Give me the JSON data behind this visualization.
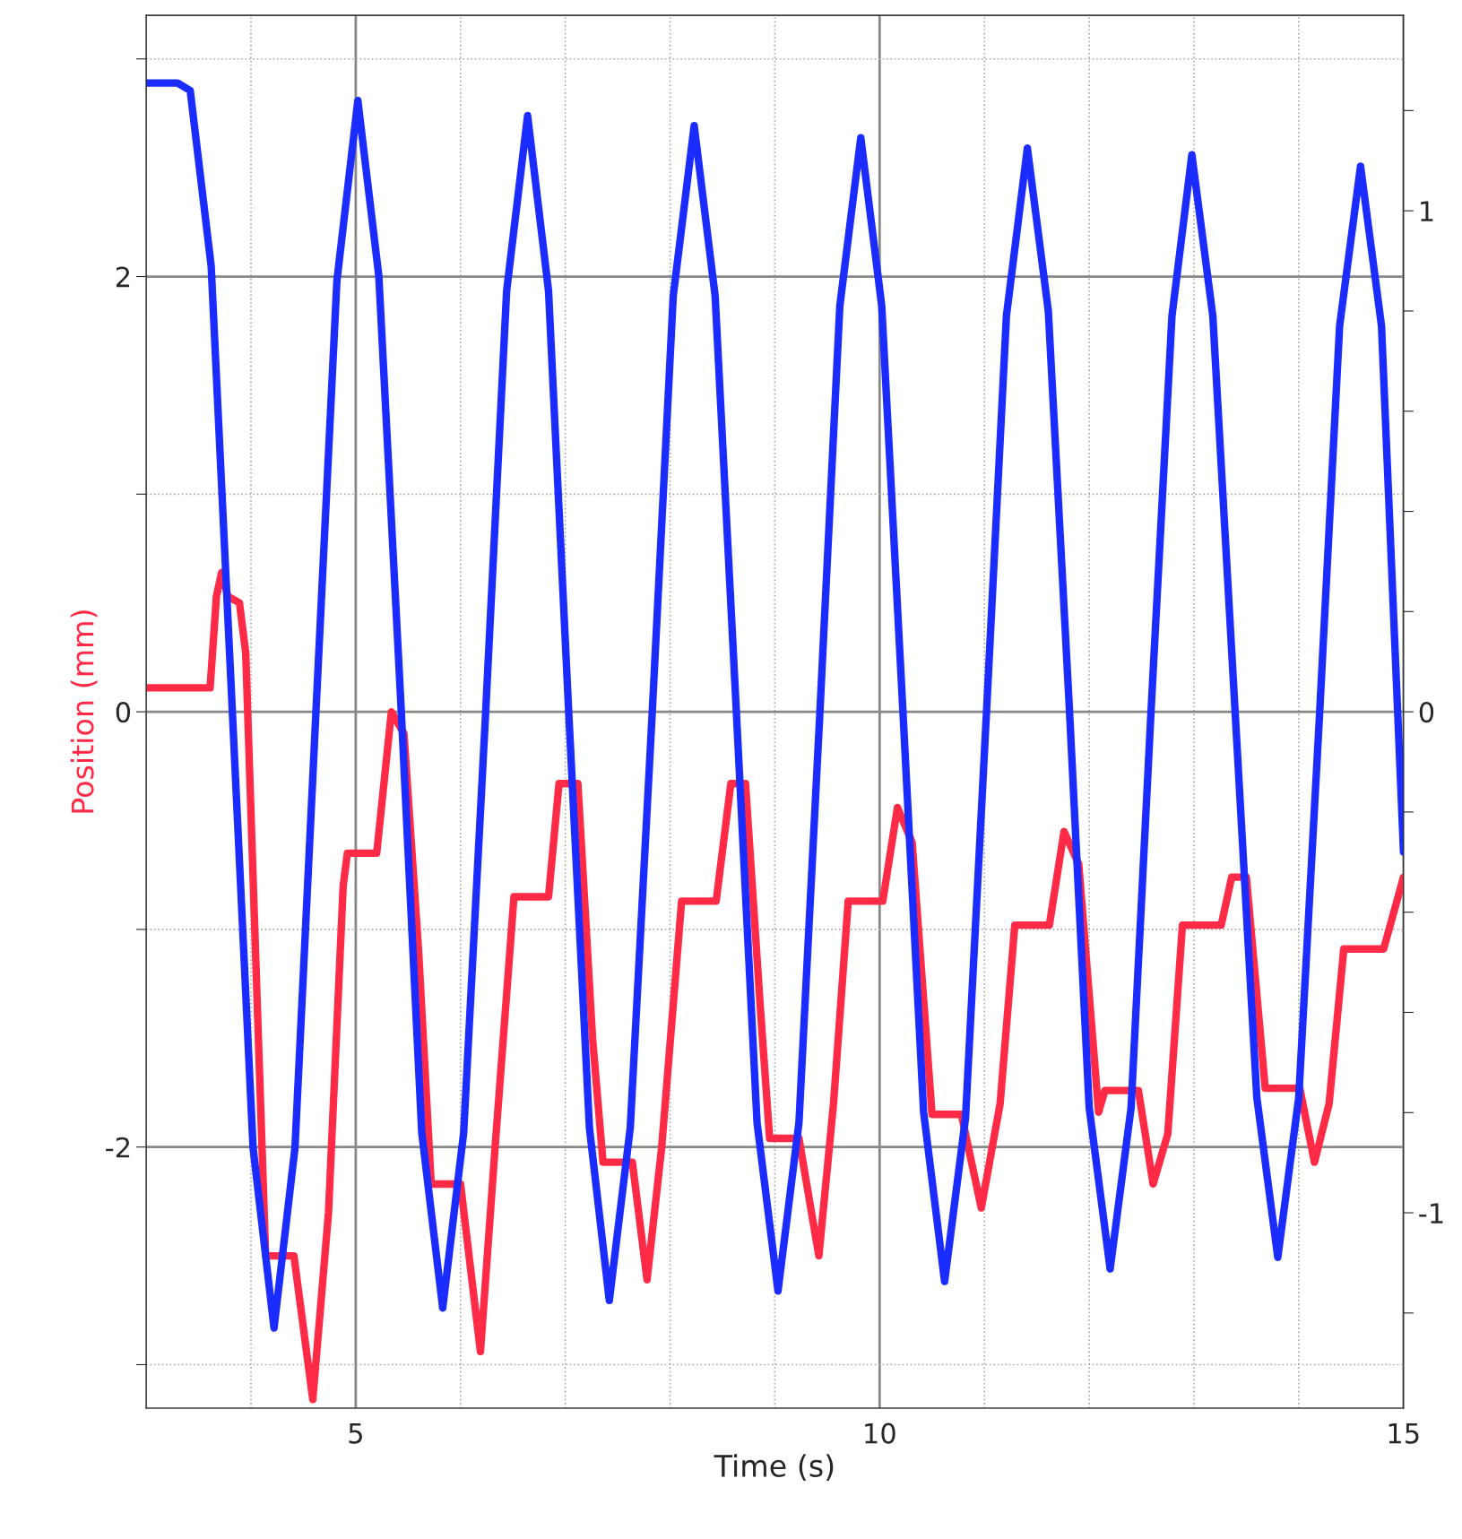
{
  "chart_data": {
    "type": "line",
    "xlabel": "Time (s)",
    "ylabel": "Position (mm)",
    "xlim": [
      3,
      15
    ],
    "ylim": [
      -3.2,
      3.2
    ],
    "y2lim": [
      -1.39,
      1.39
    ],
    "xticks": [
      {
        "value": 3,
        "label": null
      },
      {
        "value": 4,
        "label": null
      },
      5,
      {
        "value": 6,
        "label": null
      },
      {
        "value": 7,
        "label": null
      },
      {
        "value": 8,
        "label": null
      },
      {
        "value": 9,
        "label": null
      },
      10,
      {
        "value": 11,
        "label": null
      },
      {
        "value": 12,
        "label": null
      },
      {
        "value": 13,
        "label": null
      },
      {
        "value": 14,
        "label": null
      },
      15
    ],
    "yticks": [
      {
        "value": -3,
        "label": null
      },
      -2,
      {
        "value": -1,
        "label": null
      },
      0,
      {
        "value": 1,
        "label": null
      },
      2,
      {
        "value": 3,
        "label": null
      }
    ],
    "y2ticks": [
      {
        "value": -1.2,
        "label": null
      },
      -1,
      {
        "value": -0.8,
        "label": null
      },
      {
        "value": -0.6,
        "label": null
      },
      {
        "value": -0.4,
        "label": null
      },
      {
        "value": -0.2,
        "label": null
      },
      0,
      {
        "value": 0.2,
        "label": null
      },
      {
        "value": 0.4,
        "label": null
      },
      {
        "value": 0.6,
        "label": null
      },
      {
        "value": 0.8,
        "label": null
      },
      1,
      {
        "value": 1.2,
        "label": null
      }
    ],
    "grid": true,
    "legend": false,
    "series": [
      {
        "color": "#ff2a45",
        "x": [
          3.0,
          3.61,
          3.67,
          3.72,
          3.78,
          3.89,
          3.95,
          4.05,
          4.14,
          4.41,
          4.59,
          4.74,
          4.88,
          4.92,
          5.2,
          5.34,
          5.46,
          5.6,
          5.72,
          6.0,
          6.19,
          6.33,
          6.51,
          6.84,
          6.94,
          7.12,
          7.26,
          7.36,
          7.64,
          7.78,
          7.92,
          8.11,
          8.44,
          8.58,
          8.72,
          8.86,
          8.95,
          9.23,
          9.42,
          9.56,
          9.7,
          10.03,
          10.17,
          10.31,
          10.5,
          10.78,
          10.97,
          11.15,
          11.29,
          11.62,
          11.76,
          11.9,
          12.09,
          12.15,
          12.47,
          12.61,
          12.75,
          12.89,
          13.26,
          13.36,
          13.5,
          13.68,
          14.01,
          14.15,
          14.29,
          14.43,
          14.81,
          15.0
        ],
        "values": [
          0.11,
          0.11,
          0.53,
          0.64,
          0.53,
          0.5,
          0.27,
          -1.2,
          -2.5,
          -2.5,
          -3.16,
          -2.3,
          -0.8,
          -0.65,
          -0.65,
          0.0,
          -0.1,
          -1.1,
          -2.17,
          -2.17,
          -2.94,
          -2.0,
          -0.85,
          -0.85,
          -0.33,
          -0.33,
          -1.5,
          -2.07,
          -2.07,
          -2.61,
          -2.0,
          -0.87,
          -0.87,
          -0.33,
          -0.33,
          -1.35,
          -1.96,
          -1.96,
          -2.5,
          -1.8,
          -0.87,
          -0.87,
          -0.44,
          -0.6,
          -1.85,
          -1.85,
          -2.28,
          -1.8,
          -0.98,
          -0.98,
          -0.55,
          -0.7,
          -1.84,
          -1.74,
          -1.74,
          -2.17,
          -1.94,
          -0.98,
          -0.98,
          -0.76,
          -0.76,
          -1.73,
          -1.73,
          -2.07,
          -1.8,
          -1.09,
          -1.09,
          -0.76
        ]
      },
      {
        "color": "#1a2cff",
        "axis": "y2",
        "x": [
          3.0,
          3.3,
          3.42,
          3.62,
          3.82,
          4.02,
          4.22,
          4.42,
          4.62,
          4.82,
          5.02,
          5.22,
          5.43,
          5.63,
          5.83,
          6.03,
          6.24,
          6.44,
          6.64,
          6.84,
          7.03,
          7.23,
          7.42,
          7.62,
          7.83,
          8.03,
          8.23,
          8.43,
          8.63,
          8.83,
          9.03,
          9.23,
          9.43,
          9.62,
          9.82,
          10.02,
          10.22,
          10.42,
          10.62,
          10.82,
          11.02,
          11.21,
          11.41,
          11.61,
          11.81,
          12.0,
          12.2,
          12.4,
          12.59,
          12.79,
          12.98,
          13.18,
          13.39,
          13.6,
          13.8,
          14.0,
          14.2,
          14.39,
          14.59,
          14.79,
          15.0
        ],
        "values": [
          1.255,
          1.255,
          1.24,
          0.89,
          0.01,
          -0.87,
          -1.23,
          -0.87,
          0.0,
          0.86,
          1.22,
          0.87,
          0.02,
          -0.84,
          -1.19,
          -0.84,
          0.0,
          0.84,
          1.19,
          0.84,
          0.01,
          -0.83,
          -1.175,
          -0.83,
          0.0,
          0.83,
          1.17,
          0.83,
          0.01,
          -0.82,
          -1.156,
          -0.82,
          0.0,
          0.81,
          1.146,
          0.81,
          0.01,
          -0.8,
          -1.137,
          -0.81,
          0.0,
          0.79,
          1.125,
          0.8,
          0.01,
          -0.79,
          -1.112,
          -0.79,
          0.0,
          0.79,
          1.112,
          0.79,
          0.01,
          -0.77,
          -1.089,
          -0.77,
          0.0,
          0.77,
          1.089,
          0.77,
          -0.28
        ]
      }
    ]
  }
}
